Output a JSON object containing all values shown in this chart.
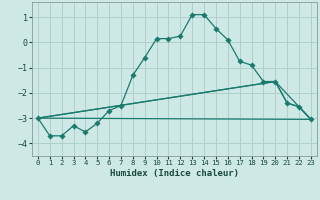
{
  "title": "",
  "xlabel": "Humidex (Indice chaleur)",
  "background_color": "#cde8e5",
  "grid_color": "#b0d0cc",
  "line_color": "#1a7a6e",
  "xlim": [
    -0.5,
    23.5
  ],
  "ylim": [
    -4.5,
    1.6
  ],
  "yticks": [
    -4,
    -3,
    -2,
    -1,
    0,
    1
  ],
  "xticks": [
    0,
    1,
    2,
    3,
    4,
    5,
    6,
    7,
    8,
    9,
    10,
    11,
    12,
    13,
    14,
    15,
    16,
    17,
    18,
    19,
    20,
    21,
    22,
    23
  ],
  "line1_x": [
    0,
    1,
    2,
    3,
    4,
    5,
    6,
    7,
    8,
    9,
    10,
    11,
    12,
    13,
    14,
    15,
    16,
    17,
    18,
    19,
    20,
    21,
    22,
    23
  ],
  "line1_y": [
    -3.0,
    -3.7,
    -3.7,
    -3.3,
    -3.55,
    -3.2,
    -2.7,
    -2.5,
    -1.3,
    -0.6,
    0.15,
    0.15,
    0.25,
    1.1,
    1.1,
    0.55,
    0.1,
    -0.75,
    -0.9,
    -1.55,
    -1.55,
    -2.4,
    -2.55,
    -3.05
  ],
  "line2_x": [
    0,
    23
  ],
  "line2_y": [
    -3.0,
    -3.05
  ],
  "line3_x": [
    0,
    20,
    23
  ],
  "line3_y": [
    -3.0,
    -1.55,
    -3.05
  ],
  "line4_x": [
    0,
    20,
    21,
    22,
    23
  ],
  "line4_y": [
    -3.0,
    -1.55,
    -2.4,
    -2.55,
    -3.05
  ]
}
